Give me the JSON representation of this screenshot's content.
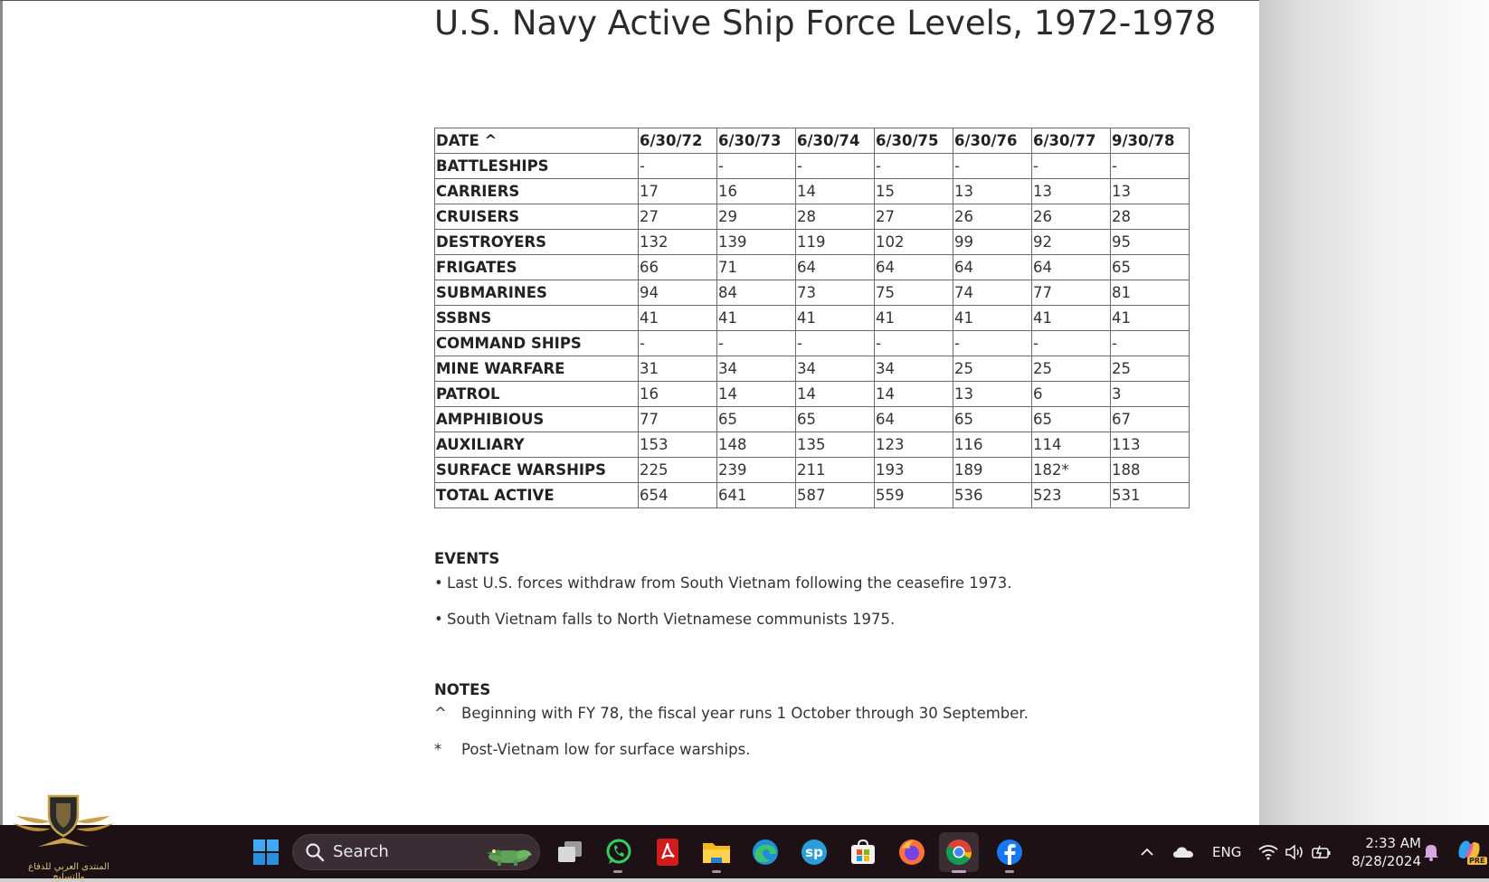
{
  "document": {
    "title": "U.S. Navy Active Ship Force Levels, 1972-1978"
  },
  "table": {
    "header": [
      "DATE ^",
      "6/30/72",
      "6/30/73",
      "6/30/74",
      "6/30/75",
      "6/30/76",
      "6/30/77",
      "9/30/78"
    ],
    "rows": [
      {
        "label": "BATTLESHIPS",
        "values": [
          "-",
          "-",
          "-",
          "-",
          "-",
          "-",
          "-"
        ]
      },
      {
        "label": "CARRIERS",
        "values": [
          "17",
          "16",
          "14",
          "15",
          "13",
          "13",
          "13"
        ]
      },
      {
        "label": "CRUISERS",
        "values": [
          "27",
          "29",
          "28",
          "27",
          "26",
          "26",
          "28"
        ]
      },
      {
        "label": "DESTROYERS",
        "values": [
          "132",
          "139",
          "119",
          "102",
          "99",
          "92",
          "95"
        ]
      },
      {
        "label": "FRIGATES",
        "values": [
          "66",
          "71",
          "64",
          "64",
          "64",
          "64",
          "65"
        ]
      },
      {
        "label": "SUBMARINES",
        "values": [
          "94",
          "84",
          "73",
          "75",
          "74",
          "77",
          "81"
        ]
      },
      {
        "label": "SSBNS",
        "values": [
          "41",
          "41",
          "41",
          "41",
          "41",
          "41",
          "41"
        ]
      },
      {
        "label": "COMMAND SHIPS",
        "values": [
          "-",
          "-",
          "-",
          "-",
          "-",
          "-",
          "-"
        ]
      },
      {
        "label": "MINE WARFARE",
        "values": [
          "31",
          "34",
          "34",
          "34",
          "25",
          "25",
          "25"
        ]
      },
      {
        "label": "PATROL",
        "values": [
          "16",
          "14",
          "14",
          "14",
          "13",
          "6",
          "3"
        ]
      },
      {
        "label": "AMPHIBIOUS",
        "values": [
          "77",
          "65",
          "65",
          "64",
          "65",
          "65",
          "67"
        ]
      },
      {
        "label": "AUXILIARY",
        "values": [
          "153",
          "148",
          "135",
          "123",
          "116",
          "114",
          "113"
        ]
      },
      {
        "label": "SURFACE WARSHIPS",
        "values": [
          "225",
          "239",
          "211",
          "193",
          "189",
          "182*",
          "188"
        ]
      },
      {
        "label": "TOTAL ACTIVE",
        "values": [
          "654",
          "641",
          "587",
          "559",
          "536",
          "523",
          "531"
        ]
      }
    ]
  },
  "events": {
    "heading": "EVENTS",
    "bullet": "•",
    "items": [
      "Last U.S. forces withdraw from South Vietnam following the ceasefire 1973.",
      "South Vietnam falls to North Vietnamese communists 1975."
    ]
  },
  "notes": {
    "heading": "NOTES",
    "items": [
      {
        "mark": "^",
        "text": "Beginning with FY 78, the fiscal year runs 1 October through 30 September."
      },
      {
        "mark": "*",
        "text": "Post-Vietnam low for surface warships."
      }
    ]
  },
  "watermark": {
    "text": "المنتدى العربي للدفاع والتسليح"
  },
  "taskbar": {
    "search_label": "Search",
    "language": "ENG",
    "time": "2:33 AM",
    "date": "8/28/2024",
    "copilot_badge": "PRE",
    "apps": [
      "start-icon",
      "task-view-icon",
      "whatsapp-icon",
      "pdf-reader-icon",
      "file-explorer-icon",
      "edge-icon",
      "sp-app-icon",
      "store-icon",
      "firefox-icon",
      "chrome-icon",
      "facebook-icon"
    ],
    "tray": [
      "chevron-up-icon",
      "onedrive-icon",
      "wifi-icon",
      "volume-icon",
      "battery-icon",
      "bell-icon",
      "copilot-icon"
    ]
  }
}
